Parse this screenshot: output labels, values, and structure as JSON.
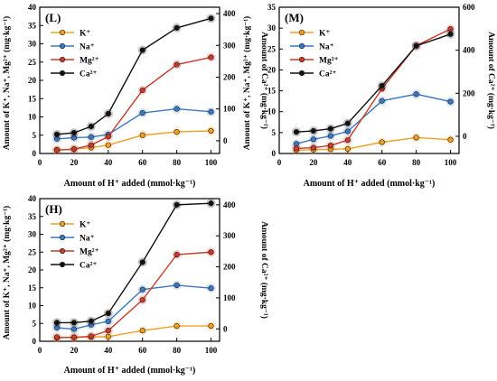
{
  "series_colors": {
    "K": "#f0a020",
    "Na": "#3a78c0",
    "Mg": "#c83a2a",
    "Ca": "#111111"
  },
  "chart_data": [
    {
      "panel": "(L)",
      "type": "line",
      "xlabel": "Amount of H⁺ added (mmol·kg⁻¹)",
      "ylabel_left": "Amount of K⁺, Na⁺, Mg²⁺ (mg·kg⁻¹)",
      "ylabel_right": "Amount of Ca²⁺ (mg·kg⁻¹)",
      "x": [
        10,
        20,
        30,
        40,
        60,
        80,
        100
      ],
      "x_ticks": [
        "0",
        "20",
        "40",
        "60",
        "80",
        "100"
      ],
      "ylim_left": [
        0,
        40
      ],
      "y_ticks_left": [
        "0",
        "5",
        "10",
        "15",
        "20",
        "25",
        "30",
        "35",
        "40"
      ],
      "ylim_right": [
        -40,
        420
      ],
      "y_ticks_right": [
        "0",
        "100",
        "200",
        "300",
        "400"
      ],
      "legend": [
        "K⁺",
        "Na⁺",
        "Mg²⁺",
        "Ca²⁺"
      ],
      "legend_position": "top-left",
      "series": [
        {
          "name": "K⁺",
          "axis": "left",
          "values": [
            1.0,
            1.2,
            1.6,
            2.3,
            5.0,
            5.9,
            6.2
          ]
        },
        {
          "name": "Na⁺",
          "axis": "left",
          "values": [
            4.0,
            4.3,
            4.5,
            5.2,
            11.1,
            12.2,
            11.4
          ]
        },
        {
          "name": "Mg²⁺",
          "axis": "left",
          "values": [
            0.9,
            1.2,
            2.3,
            4.6,
            17.3,
            24.3,
            26.3
          ]
        },
        {
          "name": "Ca²⁺",
          "axis": "right",
          "values": [
            20,
            25,
            45,
            85,
            285,
            355,
            385
          ]
        }
      ]
    },
    {
      "panel": "(M)",
      "type": "line",
      "xlabel": "Amount of H⁺ added (mmol·kg⁻¹)",
      "ylabel_left": "Amount of K⁺, Na⁺, Mg²⁺ (mg·kg⁻¹)",
      "ylabel_right": "Amount of Ca²⁺ (mg·kg⁻¹)",
      "x": [
        10,
        20,
        30,
        40,
        60,
        80,
        100
      ],
      "x_ticks": [
        "0",
        "20",
        "40",
        "60",
        "80",
        "100"
      ],
      "ylim_left": [
        0,
        35
      ],
      "y_ticks_left": [
        "0",
        "5",
        "10",
        "15",
        "20",
        "25",
        "30",
        "35"
      ],
      "ylim_right": [
        -80,
        600
      ],
      "y_ticks_right": [
        "0",
        "200",
        "400",
        "600"
      ],
      "legend": [
        "K⁺",
        "Na⁺",
        "Mg²⁺",
        "Ca²⁺"
      ],
      "legend_position": "top-left",
      "series": [
        {
          "name": "K⁺",
          "axis": "left",
          "values": [
            0.8,
            0.9,
            1.0,
            1.1,
            2.7,
            3.8,
            3.3
          ]
        },
        {
          "name": "Na⁺",
          "axis": "left",
          "values": [
            2.3,
            3.4,
            4.2,
            5.3,
            12.6,
            14.2,
            12.4
          ]
        },
        {
          "name": "Mg²⁺",
          "axis": "left",
          "values": [
            1.2,
            1.4,
            1.9,
            3.2,
            15.5,
            25.8,
            29.8
          ]
        },
        {
          "name": "Ca²⁺",
          "axis": "right",
          "values": [
            20,
            25,
            35,
            60,
            235,
            420,
            475
          ]
        }
      ]
    },
    {
      "panel": "(H)",
      "type": "line",
      "xlabel": "Amount of H⁺ added (mmol·kg⁻¹)",
      "ylabel_left": "Amount of K⁺, Na⁺, Mg²⁺ (mg·kg⁻¹)",
      "ylabel_right": "Amount of Ca²⁺ (mg·kg⁻¹)",
      "x": [
        10,
        20,
        30,
        40,
        60,
        80,
        100
      ],
      "x_ticks": [
        "0",
        "20",
        "40",
        "60",
        "80",
        "100"
      ],
      "ylim_left": [
        0,
        40
      ],
      "y_ticks_left": [
        "0",
        "5",
        "10",
        "15",
        "20",
        "25",
        "30",
        "35",
        "40"
      ],
      "ylim_right": [
        -40,
        420
      ],
      "y_ticks_right": [
        "0",
        "100",
        "200",
        "300",
        "400"
      ],
      "legend": [
        "K⁺",
        "Na⁺",
        "Mg²⁺",
        "Ca²⁺"
      ],
      "legend_position": "top-left",
      "series": [
        {
          "name": "K⁺",
          "axis": "left",
          "values": [
            1.0,
            1.1,
            1.2,
            1.3,
            3.0,
            4.3,
            4.3
          ]
        },
        {
          "name": "Na⁺",
          "axis": "left",
          "values": [
            3.8,
            3.4,
            4.6,
            5.6,
            14.5,
            15.7,
            14.9
          ]
        },
        {
          "name": "Mg²⁺",
          "axis": "left",
          "values": [
            1.1,
            1.1,
            1.4,
            3.0,
            11.6,
            24.3,
            25.0
          ]
        },
        {
          "name": "Ca²⁺",
          "axis": "right",
          "values": [
            20,
            20,
            25,
            50,
            215,
            400,
            405
          ]
        }
      ]
    }
  ]
}
